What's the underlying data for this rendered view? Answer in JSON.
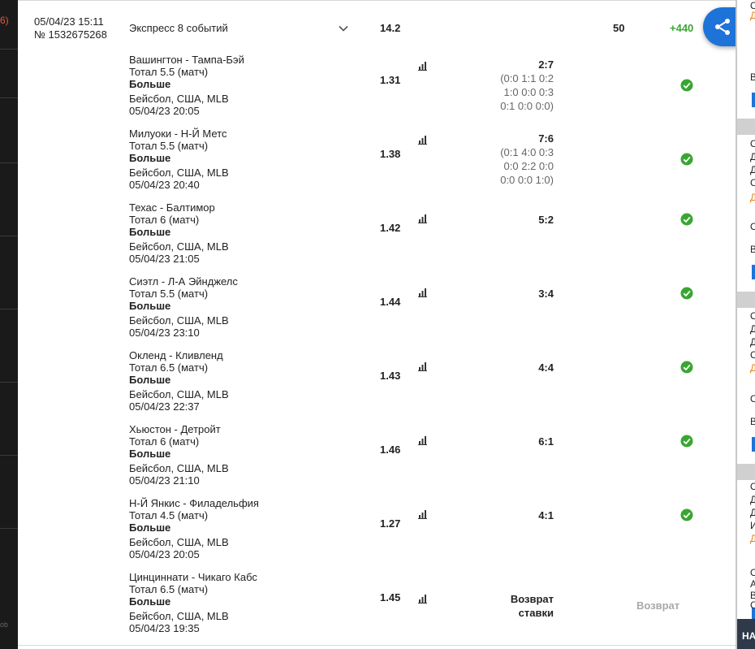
{
  "left_edge_fragment": "6)",
  "left_edge_bottom": "ob",
  "bet": {
    "date": "05/04/23 15:11",
    "number": "№ 1532675268",
    "title": "Экспресс 8 событий",
    "odds": "14.2",
    "stake": "50",
    "winnings": "+440"
  },
  "events": [
    {
      "match": "Вашингтон - Тампа-Бэй",
      "market": "Тотал 5.5 (матч)",
      "selection": "Больше",
      "league": "Бейсбол, США, MLB",
      "datetime": "05/04/23 20:05",
      "odds": "1.31",
      "score": "2:7",
      "score_details": [
        "(0:0 1:1 0:2",
        "1:0 0:0 0:3",
        "0:1 0:0 0:0)"
      ],
      "status": "won"
    },
    {
      "match": "Милуоки - Н-Й Метс",
      "market": "Тотал 5.5 (матч)",
      "selection": "Больше",
      "league": "Бейсбол, США, MLB",
      "datetime": "05/04/23 20:40",
      "odds": "1.38",
      "score": "7:6",
      "score_details": [
        "(0:1 4:0 0:3",
        "0:0 2:2 0:0",
        "0:0 0:0 1:0)"
      ],
      "status": "won"
    },
    {
      "match": "Техас - Балтимор",
      "market": "Тотал 6 (матч)",
      "selection": "Больше",
      "league": "Бейсбол, США, MLB",
      "datetime": "05/04/23 21:05",
      "odds": "1.42",
      "score": "5:2",
      "score_details": [],
      "status": "won"
    },
    {
      "match": "Сиэтл - Л-А Эйнджелс",
      "market": "Тотал 5.5 (матч)",
      "selection": "Больше",
      "league": "Бейсбол, США, MLB",
      "datetime": "05/04/23 23:10",
      "odds": "1.44",
      "score": "3:4",
      "score_details": [],
      "status": "won"
    },
    {
      "match": "Окленд - Кливленд",
      "market": "Тотал 6.5 (матч)",
      "selection": "Больше",
      "league": "Бейсбол, США, MLB",
      "datetime": "05/04/23 22:37",
      "odds": "1.43",
      "score": "4:4",
      "score_details": [],
      "status": "won"
    },
    {
      "match": "Хьюстон - Детройт",
      "market": "Тотал 6 (матч)",
      "selection": "Больше",
      "league": "Бейсбол, США, MLB",
      "datetime": "05/04/23 21:10",
      "odds": "1.46",
      "score": "6:1",
      "score_details": [],
      "status": "won"
    },
    {
      "match": "Н-Й Янкис - Филадельфия",
      "market": "Тотал 4.5 (матч)",
      "selection": "Больше",
      "league": "Бейсбол, США, MLB",
      "datetime": "05/04/23 20:05",
      "odds": "1.27",
      "score": "4:1",
      "score_details": [],
      "status": "won"
    },
    {
      "match": "Цинциннати - Чикаго Кабс",
      "market": "Тотал 6.5 (матч)",
      "selection": "Больше",
      "league": "Бейсбол, США, MLB",
      "datetime": "05/04/23 19:35",
      "odds": "1.45",
      "score_lines": [
        "Возврат",
        "ставки"
      ],
      "score_details": [],
      "status": "refund",
      "status_label": "Возврат"
    }
  ],
  "right_panel": {
    "letters": [
      "О",
      "Д",
      "В",
      "О",
      "Д",
      "Д",
      "С",
      "Д",
      "О",
      "В",
      "О",
      "Д",
      "Д",
      "С",
      "Д",
      "О",
      "В",
      "О",
      "Д",
      "Д",
      "И",
      "Д",
      "О",
      "В",
      "А",
      "С"
    ],
    "bottom_label": "НА"
  },
  "colors": {
    "win_green": "#3aa632",
    "share_blue": "#1e73d8",
    "refund_gray": "#a8a8a8"
  }
}
